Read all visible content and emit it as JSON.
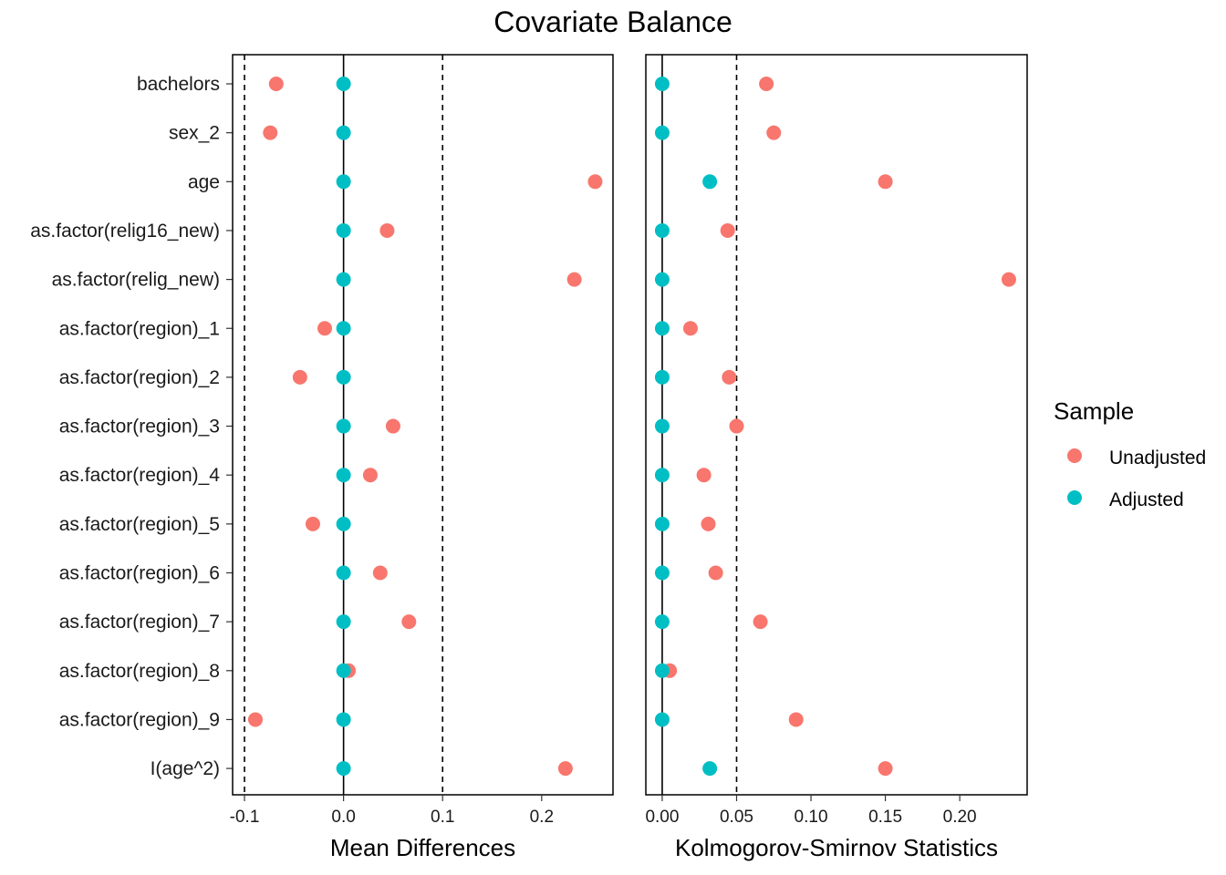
{
  "chart_data": {
    "type": "scatter",
    "title": "Covariate Balance",
    "covariates": [
      "bachelors",
      "sex_2",
      "age",
      "as.factor(relig16_new)",
      "as.factor(relig_new)",
      "as.factor(region)_1",
      "as.factor(region)_2",
      "as.factor(region)_3",
      "as.factor(region)_4",
      "as.factor(region)_5",
      "as.factor(region)_6",
      "as.factor(region)_7",
      "as.factor(region)_8",
      "as.factor(region)_9",
      "I(age^2)"
    ],
    "legend": {
      "title": "Sample",
      "position": "right",
      "entries": [
        {
          "name": "Unadjusted",
          "color": "#F8766D"
        },
        {
          "name": "Adjusted",
          "color": "#00BFC4"
        }
      ]
    },
    "panels": [
      {
        "xlabel": "Mean Differences",
        "xlim": [
          -0.112,
          0.272
        ],
        "ticks": [
          -0.1,
          0.0,
          0.1,
          0.2
        ],
        "tick_labels": [
          "-0.1",
          "0.0",
          "0.1",
          "0.2"
        ],
        "threshold_lines": [
          -0.1,
          0.1
        ],
        "reference_line": 0,
        "series": [
          {
            "name": "Unadjusted",
            "values": [
              -0.068,
              -0.074,
              0.254,
              0.044,
              0.233,
              -0.019,
              -0.044,
              0.05,
              0.027,
              -0.031,
              0.037,
              0.066,
              0.005,
              -0.089,
              0.224
            ]
          },
          {
            "name": "Adjusted",
            "values": [
              0,
              0,
              0,
              0,
              0,
              0,
              0,
              0,
              0,
              0,
              0,
              0,
              0,
              0,
              0
            ]
          }
        ]
      },
      {
        "xlabel": "Kolmogorov-Smirnov Statistics",
        "xlim": [
          -0.011,
          0.2453
        ],
        "ticks": [
          0.0,
          0.05,
          0.1,
          0.15,
          0.2
        ],
        "tick_labels": [
          "0.00",
          "0.05",
          "0.10",
          "0.15",
          "0.20"
        ],
        "threshold_lines": [
          0.05
        ],
        "reference_line": 0,
        "series": [
          {
            "name": "Unadjusted",
            "values": [
              0.07,
              0.075,
              0.15,
              0.044,
              0.233,
              0.019,
              0.045,
              0.05,
              0.028,
              0.031,
              0.036,
              0.066,
              0.005,
              0.09,
              0.15
            ]
          },
          {
            "name": "Adjusted",
            "values": [
              0,
              0,
              0.032,
              0,
              0,
              0,
              0,
              0,
              0,
              0,
              0,
              0,
              0,
              0,
              0.032
            ]
          }
        ]
      }
    ]
  }
}
